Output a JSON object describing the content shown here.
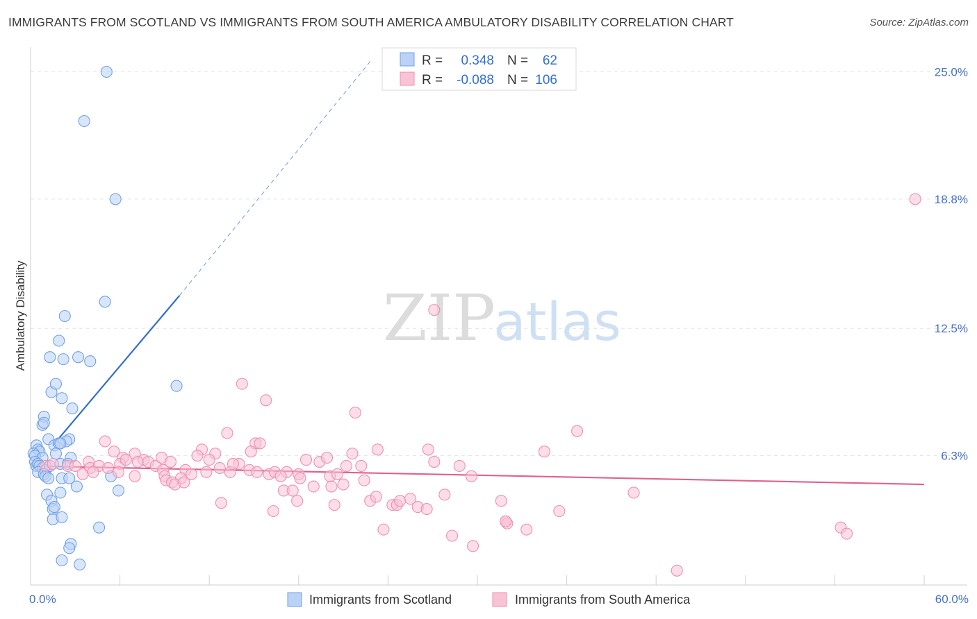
{
  "title": "IMMIGRANTS FROM SCOTLAND VS IMMIGRANTS FROM SOUTH AMERICA AMBULATORY DISABILITY CORRELATION CHART",
  "source": "Source: ZipAtlas.com",
  "watermark": {
    "zip": "ZIP",
    "atlas": "atlas"
  },
  "chart_data": {
    "type": "scatter",
    "ylabel": "Ambulatory Disability",
    "xlim": [
      0,
      60
    ],
    "ylim": [
      0,
      26.2
    ],
    "x_tick_labels": [
      {
        "value": 0,
        "label": "0.0%"
      },
      {
        "value": 60,
        "label": "60.0%"
      }
    ],
    "y_ticks": [
      {
        "value": 6.3,
        "label": "6.3%"
      },
      {
        "value": 12.5,
        "label": "12.5%"
      },
      {
        "value": 18.8,
        "label": "18.8%"
      },
      {
        "value": 25.0,
        "label": "25.0%"
      }
    ],
    "x_minor_ticks": [
      0,
      6,
      12,
      18,
      24,
      30,
      36,
      42,
      48,
      54,
      60
    ],
    "grid": true,
    "legend_position": "bottom",
    "stats_box": {
      "rows": [
        {
          "r_label": "R =",
          "r_value": "0.348",
          "n_label": "N =",
          "n_value": "62"
        },
        {
          "r_label": "R =",
          "r_value": "-0.088",
          "n_label": "N =",
          "n_value": "106"
        }
      ]
    },
    "series": [
      {
        "name": "Immigrants from Scotland",
        "color": "#6fa0e8",
        "fill": "#b9d2f5",
        "line_color": "#2f6fd1",
        "trend": {
          "x0": 1.5,
          "y0": 6.8,
          "x1": 10,
          "y1": 14.1,
          "dash_to_x": 22.8,
          "dash_to_y": 25.5
        },
        "points": [
          [
            5.1,
            25.0
          ],
          [
            3.6,
            22.6
          ],
          [
            5.7,
            18.8
          ],
          [
            5.0,
            13.8
          ],
          [
            2.3,
            13.1
          ],
          [
            1.9,
            11.9
          ],
          [
            1.3,
            11.1
          ],
          [
            2.2,
            11.0
          ],
          [
            3.2,
            11.1
          ],
          [
            4.0,
            10.9
          ],
          [
            9.8,
            9.7
          ],
          [
            1.4,
            9.4
          ],
          [
            1.7,
            9.8
          ],
          [
            2.1,
            9.1
          ],
          [
            2.8,
            8.6
          ],
          [
            0.9,
            8.2
          ],
          [
            0.8,
            7.8
          ],
          [
            0.9,
            7.9
          ],
          [
            1.2,
            7.1
          ],
          [
            2.6,
            7.1
          ],
          [
            2.4,
            7.0
          ],
          [
            1.6,
            6.8
          ],
          [
            1.9,
            6.9
          ],
          [
            2.0,
            6.9
          ],
          [
            0.4,
            6.8
          ],
          [
            0.5,
            6.6
          ],
          [
            0.6,
            6.5
          ],
          [
            0.2,
            6.4
          ],
          [
            0.3,
            6.3
          ],
          [
            0.8,
            6.2
          ],
          [
            1.7,
            6.4
          ],
          [
            2.7,
            6.2
          ],
          [
            0.3,
            6.0
          ],
          [
            0.4,
            5.8
          ],
          [
            0.5,
            5.9
          ],
          [
            0.6,
            5.8
          ],
          [
            0.8,
            5.7
          ],
          [
            1.0,
            5.6
          ],
          [
            1.3,
            5.8
          ],
          [
            2.0,
            5.9
          ],
          [
            2.5,
            5.9
          ],
          [
            0.5,
            5.5
          ],
          [
            0.9,
            5.4
          ],
          [
            1.0,
            5.3
          ],
          [
            1.2,
            5.2
          ],
          [
            2.1,
            5.2
          ],
          [
            2.6,
            5.2
          ],
          [
            3.1,
            4.8
          ],
          [
            5.4,
            5.3
          ],
          [
            5.9,
            4.6
          ],
          [
            1.1,
            4.4
          ],
          [
            2.0,
            4.5
          ],
          [
            1.4,
            4.1
          ],
          [
            1.5,
            3.7
          ],
          [
            1.6,
            3.8
          ],
          [
            1.5,
            3.2
          ],
          [
            2.1,
            3.3
          ],
          [
            4.6,
            2.8
          ],
          [
            2.7,
            2.0
          ],
          [
            2.6,
            1.8
          ],
          [
            2.1,
            1.2
          ],
          [
            3.3,
            1.0
          ]
        ]
      },
      {
        "name": "Immigrants from South America",
        "color": "#ef8fb0",
        "fill": "#f8c3d4",
        "line_color": "#e2608e",
        "trend": {
          "x0": 0,
          "y0": 5.8,
          "x1": 60,
          "y1": 4.9
        },
        "points": [
          [
            59.4,
            18.8
          ],
          [
            27.1,
            13.4
          ],
          [
            14.2,
            9.8
          ],
          [
            15.8,
            9.0
          ],
          [
            21.8,
            8.4
          ],
          [
            36.7,
            7.5
          ],
          [
            13.2,
            7.4
          ],
          [
            5.0,
            7.0
          ],
          [
            15.1,
            6.9
          ],
          [
            15.4,
            6.9
          ],
          [
            11.5,
            6.6
          ],
          [
            12.4,
            6.4
          ],
          [
            23.3,
            6.6
          ],
          [
            26.7,
            6.6
          ],
          [
            34.5,
            6.5
          ],
          [
            21.6,
            6.4
          ],
          [
            5.6,
            6.5
          ],
          [
            7.0,
            6.4
          ],
          [
            6.2,
            6.2
          ],
          [
            7.6,
            6.1
          ],
          [
            11.2,
            6.3
          ],
          [
            3.9,
            6.0
          ],
          [
            6.0,
            5.9
          ],
          [
            6.4,
            6.1
          ],
          [
            7.2,
            6.0
          ],
          [
            7.9,
            6.0
          ],
          [
            8.4,
            5.8
          ],
          [
            8.8,
            6.2
          ],
          [
            9.4,
            6.0
          ],
          [
            12.0,
            6.1
          ],
          [
            14.0,
            5.9
          ],
          [
            18.5,
            6.1
          ],
          [
            19.4,
            6.0
          ],
          [
            27.1,
            6.0
          ],
          [
            28.8,
            5.8
          ],
          [
            21.2,
            5.8
          ],
          [
            22.2,
            5.8
          ],
          [
            1.0,
            5.8
          ],
          [
            1.5,
            5.9
          ],
          [
            2.5,
            5.8
          ],
          [
            3.0,
            5.8
          ],
          [
            4.0,
            5.7
          ],
          [
            4.6,
            5.8
          ],
          [
            5.2,
            5.7
          ],
          [
            8.9,
            5.6
          ],
          [
            10.4,
            5.6
          ],
          [
            11.8,
            5.5
          ],
          [
            12.7,
            5.7
          ],
          [
            13.4,
            5.5
          ],
          [
            14.7,
            5.6
          ],
          [
            15.2,
            5.5
          ],
          [
            16.0,
            5.4
          ],
          [
            16.4,
            5.5
          ],
          [
            17.2,
            5.5
          ],
          [
            18.0,
            5.4
          ],
          [
            3.5,
            5.4
          ],
          [
            4.2,
            5.5
          ],
          [
            5.9,
            5.5
          ],
          [
            7.0,
            5.3
          ],
          [
            9.0,
            5.3
          ],
          [
            10.1,
            5.2
          ],
          [
            16.8,
            5.3
          ],
          [
            18.1,
            5.2
          ],
          [
            20.1,
            5.3
          ],
          [
            20.6,
            5.4
          ],
          [
            22.4,
            5.1
          ],
          [
            29.6,
            5.3
          ],
          [
            9.1,
            5.1
          ],
          [
            9.5,
            5.0
          ],
          [
            9.7,
            4.9
          ],
          [
            10.3,
            5.0
          ],
          [
            17.0,
            4.6
          ],
          [
            17.6,
            4.6
          ],
          [
            19.0,
            4.8
          ],
          [
            20.2,
            4.8
          ],
          [
            21.0,
            4.9
          ],
          [
            40.5,
            4.5
          ],
          [
            22.8,
            4.1
          ],
          [
            23.2,
            4.3
          ],
          [
            24.3,
            3.9
          ],
          [
            24.6,
            3.9
          ],
          [
            24.8,
            4.1
          ],
          [
            25.5,
            4.2
          ],
          [
            26.0,
            3.8
          ],
          [
            26.6,
            3.7
          ],
          [
            27.8,
            4.4
          ],
          [
            17.9,
            4.1
          ],
          [
            31.6,
            4.1
          ],
          [
            12.8,
            4.0
          ],
          [
            35.5,
            3.6
          ],
          [
            16.3,
            3.6
          ],
          [
            20.4,
            3.9
          ],
          [
            31.9,
            3.1
          ],
          [
            32.0,
            3.0
          ],
          [
            33.3,
            2.7
          ],
          [
            23.7,
            2.7
          ],
          [
            28.3,
            2.4
          ],
          [
            29.7,
            1.9
          ],
          [
            54.4,
            2.8
          ],
          [
            54.8,
            2.5
          ],
          [
            43.4,
            0.7
          ],
          [
            14.8,
            6.5
          ],
          [
            19.9,
            6.2
          ],
          [
            13.6,
            5.9
          ],
          [
            10.8,
            5.4
          ],
          [
            31.9,
            3.1
          ]
        ]
      }
    ]
  }
}
